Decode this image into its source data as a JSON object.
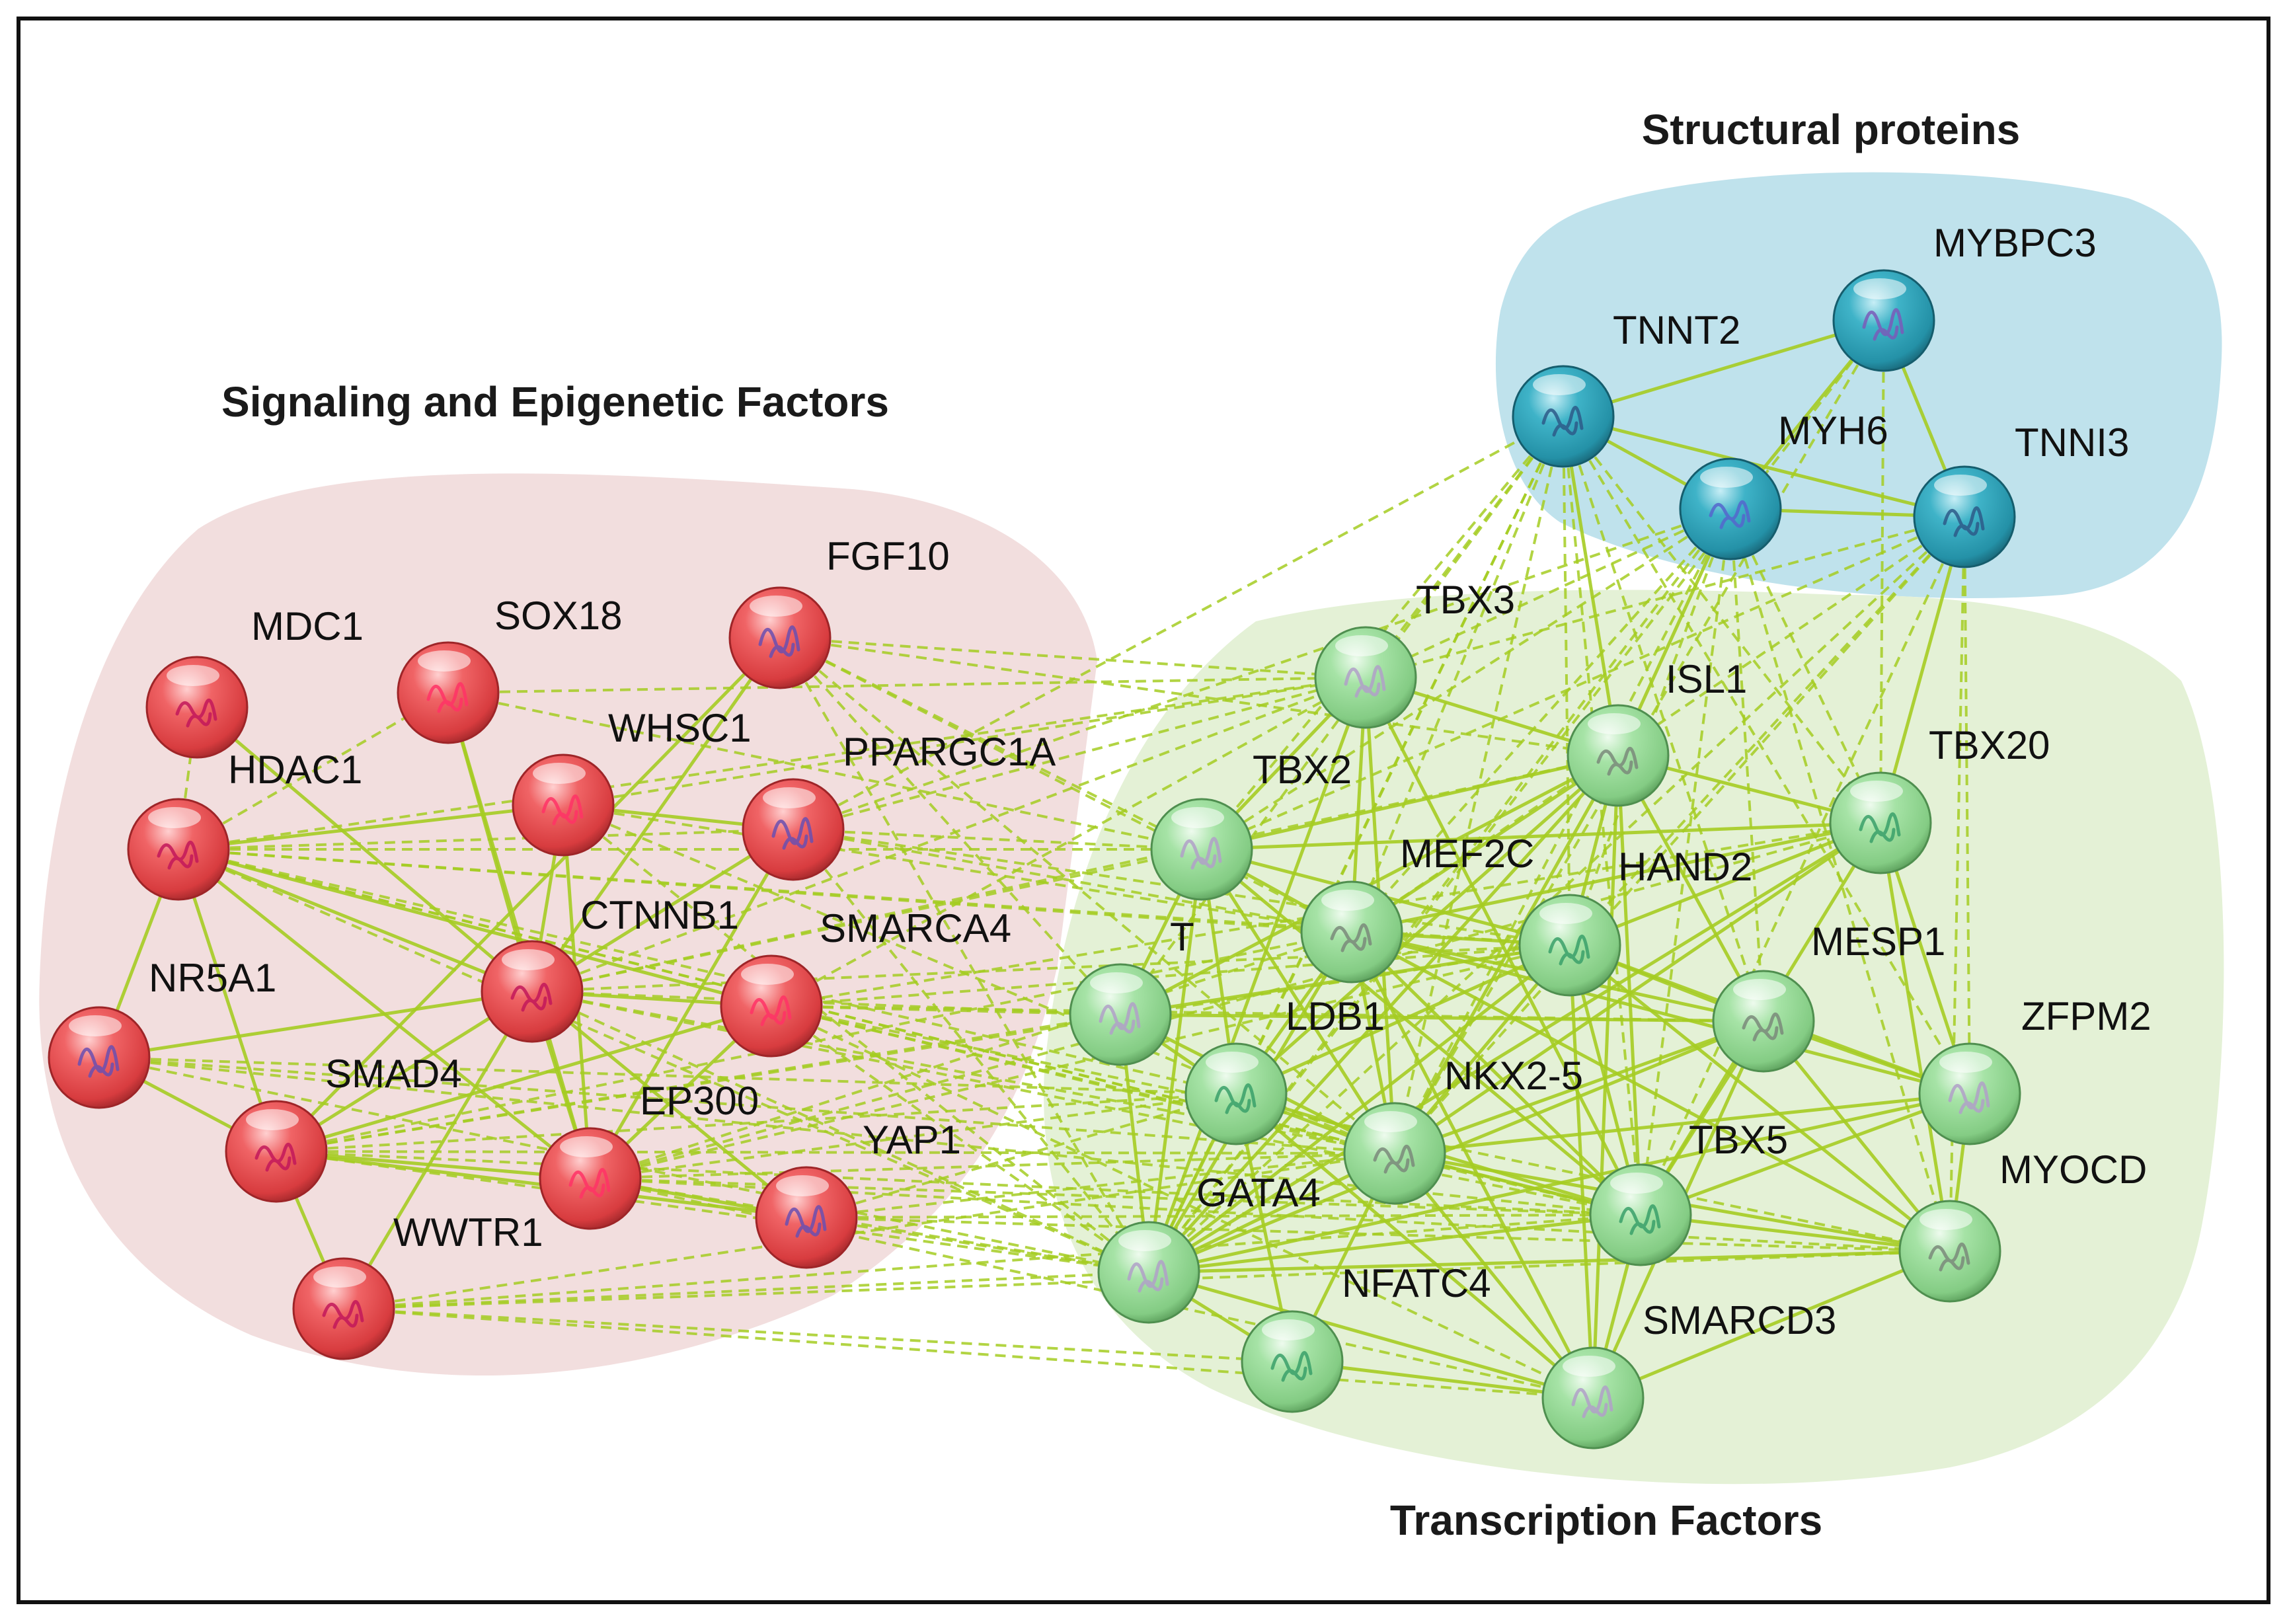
{
  "colors": {
    "signaling": "#e8474a",
    "structural": "#2a9db3",
    "transcription": "#8fd68f",
    "edge": "#a5cc22"
  },
  "groups": {
    "signaling": {
      "title": "Signaling and Epigenetic Factors",
      "fill": "#f2dede"
    },
    "structural": {
      "title": "Structural proteins",
      "fill": "#bfe2ec"
    },
    "transcription": {
      "title": "Transcription Factors",
      "fill": "#e4f1d6"
    }
  },
  "nodes": [
    {
      "id": "MDC1",
      "label": "MDC1",
      "group": "signaling"
    },
    {
      "id": "SOX18",
      "label": "SOX18",
      "group": "signaling"
    },
    {
      "id": "FGF10",
      "label": "FGF10",
      "group": "signaling"
    },
    {
      "id": "HDAC1",
      "label": "HDAC1",
      "group": "signaling"
    },
    {
      "id": "WHSC1",
      "label": "WHSC1",
      "group": "signaling"
    },
    {
      "id": "PPARGC1A",
      "label": "PPARGC1A",
      "group": "signaling"
    },
    {
      "id": "CTNNB1",
      "label": "CTNNB1",
      "group": "signaling"
    },
    {
      "id": "SMARCA4",
      "label": "SMARCA4",
      "group": "signaling"
    },
    {
      "id": "NR5A1",
      "label": "NR5A1",
      "group": "signaling"
    },
    {
      "id": "SMAD4",
      "label": "SMAD4",
      "group": "signaling"
    },
    {
      "id": "EP300",
      "label": "EP300",
      "group": "signaling"
    },
    {
      "id": "YAP1",
      "label": "YAP1",
      "group": "signaling"
    },
    {
      "id": "WWTR1",
      "label": "WWTR1",
      "group": "signaling"
    },
    {
      "id": "TNNT2",
      "label": "TNNT2",
      "group": "structural"
    },
    {
      "id": "MYBPC3",
      "label": "MYBPC3",
      "group": "structural"
    },
    {
      "id": "MYH6",
      "label": "MYH6",
      "group": "structural"
    },
    {
      "id": "TNNI3",
      "label": "TNNI3",
      "group": "structural"
    },
    {
      "id": "TBX3",
      "label": "TBX3",
      "group": "transcription"
    },
    {
      "id": "ISL1",
      "label": "ISL1",
      "group": "transcription"
    },
    {
      "id": "TBX20",
      "label": "TBX20",
      "group": "transcription"
    },
    {
      "id": "TBX2",
      "label": "TBX2",
      "group": "transcription"
    },
    {
      "id": "MEF2C",
      "label": "MEF2C",
      "group": "transcription"
    },
    {
      "id": "HAND2",
      "label": "HAND2",
      "group": "transcription"
    },
    {
      "id": "T",
      "label": "T",
      "group": "transcription"
    },
    {
      "id": "MESP1",
      "label": "MESP1",
      "group": "transcription"
    },
    {
      "id": "LDB1",
      "label": "LDB1",
      "group": "transcription"
    },
    {
      "id": "ZFPM2",
      "label": "ZFPM2",
      "group": "transcription"
    },
    {
      "id": "NKX2-5",
      "label": "NKX2-5",
      "group": "transcription"
    },
    {
      "id": "TBX5",
      "label": "TBX5",
      "group": "transcription"
    },
    {
      "id": "GATA4",
      "label": "GATA4",
      "group": "transcription"
    },
    {
      "id": "MYOCD",
      "label": "MYOCD",
      "group": "transcription"
    },
    {
      "id": "NFATC4",
      "label": "NFATC4",
      "group": "transcription"
    },
    {
      "id": "SMARCD3",
      "label": "SMARCD3",
      "group": "transcription"
    }
  ],
  "solid_edges": [
    [
      "HDAC1",
      "CTNNB1"
    ],
    [
      "HDAC1",
      "SMAD4"
    ],
    [
      "HDAC1",
      "SMARCA4"
    ],
    [
      "HDAC1",
      "EP300"
    ],
    [
      "HDAC1",
      "WHSC1"
    ],
    [
      "HDAC1",
      "NR5A1"
    ],
    [
      "MDC1",
      "CTNNB1"
    ],
    [
      "SOX18",
      "CTNNB1"
    ],
    [
      "SOX18",
      "EP300"
    ],
    [
      "FGF10",
      "CTNNB1"
    ],
    [
      "FGF10",
      "SMAD4"
    ],
    [
      "WHSC1",
      "CTNNB1"
    ],
    [
      "WHSC1",
      "EP300"
    ],
    [
      "WHSC1",
      "PPARGC1A"
    ],
    [
      "PPARGC1A",
      "EP300"
    ],
    [
      "PPARGC1A",
      "CTNNB1"
    ],
    [
      "CTNNB1",
      "SMARCA4"
    ],
    [
      "CTNNB1",
      "SMAD4"
    ],
    [
      "CTNNB1",
      "EP300"
    ],
    [
      "CTNNB1",
      "YAP1"
    ],
    [
      "CTNNB1",
      "WWTR1"
    ],
    [
      "CTNNB1",
      "NR5A1"
    ],
    [
      "SMARCA4",
      "EP300"
    ],
    [
      "SMARCA4",
      "SMAD4"
    ],
    [
      "SMAD4",
      "EP300"
    ],
    [
      "SMAD4",
      "WWTR1"
    ],
    [
      "SMAD4",
      "YAP1"
    ],
    [
      "EP300",
      "YAP1"
    ],
    [
      "NR5A1",
      "SMAD4"
    ],
    [
      "TNNT2",
      "MYBPC3"
    ],
    [
      "TNNT2",
      "MYH6"
    ],
    [
      "TNNT2",
      "TNNI3"
    ],
    [
      "MYBPC3",
      "MYH6"
    ],
    [
      "MYBPC3",
      "TNNI3"
    ],
    [
      "MYH6",
      "TNNI3"
    ],
    [
      "TBX3",
      "TBX2"
    ],
    [
      "TBX3",
      "ISL1"
    ],
    [
      "TBX3",
      "MEF2C"
    ],
    [
      "TBX3",
      "NKX2-5"
    ],
    [
      "TBX3",
      "TBX5"
    ],
    [
      "TBX3",
      "GATA4"
    ],
    [
      "ISL1",
      "TBX2"
    ],
    [
      "ISL1",
      "TBX20"
    ],
    [
      "ISL1",
      "MEF2C"
    ],
    [
      "ISL1",
      "HAND2"
    ],
    [
      "ISL1",
      "NKX2-5"
    ],
    [
      "ISL1",
      "GATA4"
    ],
    [
      "ISL1",
      "TBX5"
    ],
    [
      "ISL1",
      "MESP1"
    ],
    [
      "ISL1",
      "LDB1"
    ],
    [
      "ISL1",
      "SMARCD3"
    ],
    [
      "ISL1",
      "T"
    ],
    [
      "TBX20",
      "MEF2C"
    ],
    [
      "TBX20",
      "HAND2"
    ],
    [
      "TBX20",
      "NKX2-5"
    ],
    [
      "TBX20",
      "TBX5"
    ],
    [
      "TBX20",
      "GATA4"
    ],
    [
      "TBX20",
      "ZFPM2"
    ],
    [
      "TBX20",
      "MYOCD"
    ],
    [
      "TBX20",
      "TBX2"
    ],
    [
      "TBX2",
      "MEF2C"
    ],
    [
      "TBX2",
      "NKX2-5"
    ],
    [
      "TBX2",
      "TBX5"
    ],
    [
      "TBX2",
      "GATA4"
    ],
    [
      "TBX2",
      "HAND2"
    ],
    [
      "TBX2",
      "LDB1"
    ],
    [
      "TBX2",
      "T"
    ],
    [
      "MEF2C",
      "HAND2"
    ],
    [
      "MEF2C",
      "NKX2-5"
    ],
    [
      "MEF2C",
      "GATA4"
    ],
    [
      "MEF2C",
      "TBX5"
    ],
    [
      "MEF2C",
      "MYOCD"
    ],
    [
      "MEF2C",
      "MESP1"
    ],
    [
      "MEF2C",
      "LDB1"
    ],
    [
      "MEF2C",
      "SMARCD3"
    ],
    [
      "MEF2C",
      "ZFPM2"
    ],
    [
      "HAND2",
      "NKX2-5"
    ],
    [
      "HAND2",
      "GATA4"
    ],
    [
      "HAND2",
      "TBX5"
    ],
    [
      "HAND2",
      "MESP1"
    ],
    [
      "HAND2",
      "ZFPM2"
    ],
    [
      "HAND2",
      "MYOCD"
    ],
    [
      "HAND2",
      "SMARCD3"
    ],
    [
      "HAND2",
      "T"
    ],
    [
      "HAND2",
      "LDB1"
    ],
    [
      "T",
      "MESP1"
    ],
    [
      "T",
      "GATA4"
    ],
    [
      "T",
      "NKX2-5"
    ],
    [
      "T",
      "LDB1"
    ],
    [
      "MESP1",
      "NKX2-5"
    ],
    [
      "MESP1",
      "GATA4"
    ],
    [
      "MESP1",
      "TBX5"
    ],
    [
      "MESP1",
      "ZFPM2"
    ],
    [
      "MESP1",
      "MYOCD"
    ],
    [
      "MESP1",
      "SMARCD3"
    ],
    [
      "LDB1",
      "NKX2-5"
    ],
    [
      "LDB1",
      "GATA4"
    ],
    [
      "LDB1",
      "TBX5"
    ],
    [
      "LDB1",
      "SMARCD3"
    ],
    [
      "LDB1",
      "NFATC4"
    ],
    [
      "NKX2-5",
      "TBX5"
    ],
    [
      "NKX2-5",
      "GATA4"
    ],
    [
      "NKX2-5",
      "MYOCD"
    ],
    [
      "NKX2-5",
      "ZFPM2"
    ],
    [
      "NKX2-5",
      "SMARCD3"
    ],
    [
      "NKX2-5",
      "NFATC4"
    ],
    [
      "TBX5",
      "GATA4"
    ],
    [
      "TBX5",
      "MYOCD"
    ],
    [
      "TBX5",
      "SMARCD3"
    ],
    [
      "TBX5",
      "ZFPM2"
    ],
    [
      "GATA4",
      "ZFPM2"
    ],
    [
      "GATA4",
      "MYOCD"
    ],
    [
      "GATA4",
      "NFATC4"
    ],
    [
      "GATA4",
      "SMARCD3"
    ],
    [
      "MYOCD",
      "SMARCD3"
    ],
    [
      "NFATC4",
      "SMARCD3"
    ],
    [
      "ZFPM2",
      "MYOCD"
    ],
    [
      "TNNT2",
      "ISL1"
    ],
    [
      "MYH6",
      "ISL1"
    ],
    [
      "TNNI3",
      "TBX20"
    ]
  ],
  "dashed_edges": [
    [
      "FGF10",
      "TBX3"
    ],
    [
      "FGF10",
      "TBX2"
    ],
    [
      "FGF10",
      "ISL1"
    ],
    [
      "FGF10",
      "GATA4"
    ],
    [
      "FGF10",
      "NKX2-5"
    ],
    [
      "FGF10",
      "T"
    ],
    [
      "FGF10",
      "MEF2C"
    ],
    [
      "SOX18",
      "TBX2"
    ],
    [
      "SOX18",
      "TBX3"
    ],
    [
      "WHSC1",
      "TBX3"
    ],
    [
      "WHSC1",
      "GATA4"
    ],
    [
      "WHSC1",
      "NKX2-5"
    ],
    [
      "WHSC1",
      "MEF2C"
    ],
    [
      "HDAC1",
      "TBX3"
    ],
    [
      "HDAC1",
      "TBX2"
    ],
    [
      "HDAC1",
      "GATA4"
    ],
    [
      "HDAC1",
      "NKX2-5"
    ],
    [
      "HDAC1",
      "TBX5"
    ],
    [
      "HDAC1",
      "MEF2C"
    ],
    [
      "HDAC1",
      "HAND2"
    ],
    [
      "HDAC1",
      "LDB1"
    ],
    [
      "HDAC1",
      "PPARGC1A"
    ],
    [
      "HDAC1",
      "SOX18"
    ],
    [
      "HDAC1",
      "MDC1"
    ],
    [
      "PPARGC1A",
      "TBX3"
    ],
    [
      "PPARGC1A",
      "MEF2C"
    ],
    [
      "PPARGC1A",
      "GATA4"
    ],
    [
      "PPARGC1A",
      "TBX2"
    ],
    [
      "PPARGC1A",
      "MYH6"
    ],
    [
      "PPARGC1A",
      "TNNT2"
    ],
    [
      "PPARGC1A",
      "HAND2"
    ],
    [
      "CTNNB1",
      "TBX3"
    ],
    [
      "CTNNB1",
      "TBX2"
    ],
    [
      "CTNNB1",
      "T"
    ],
    [
      "CTNNB1",
      "ISL1"
    ],
    [
      "CTNNB1",
      "GATA4"
    ],
    [
      "CTNNB1",
      "TBX5"
    ],
    [
      "CTNNB1",
      "NKX2-5"
    ],
    [
      "CTNNB1",
      "HAND2"
    ],
    [
      "SMARCA4",
      "TBX5"
    ],
    [
      "SMARCA4",
      "GATA4"
    ],
    [
      "SMARCA4",
      "NKX2-5"
    ],
    [
      "SMARCA4",
      "T"
    ],
    [
      "SMARCA4",
      "TBX20"
    ],
    [
      "SMARCA4",
      "MESP1"
    ],
    [
      "SMARCA4",
      "SMARCD3"
    ],
    [
      "SMARCA4",
      "TBX3"
    ],
    [
      "SMARCA4",
      "HAND2"
    ],
    [
      "SMARCA4",
      "MYOCD"
    ],
    [
      "SMAD4",
      "GATA4"
    ],
    [
      "SMAD4",
      "NKX2-5"
    ],
    [
      "SMAD4",
      "TBX5"
    ],
    [
      "SMAD4",
      "T"
    ],
    [
      "SMAD4",
      "LDB1"
    ],
    [
      "SMAD4",
      "MEF2C"
    ],
    [
      "SMAD4",
      "HAND2"
    ],
    [
      "EP300",
      "GATA4"
    ],
    [
      "EP300",
      "NKX2-5"
    ],
    [
      "EP300",
      "TBX5"
    ],
    [
      "EP300",
      "MEF2C"
    ],
    [
      "EP300",
      "HAND2"
    ],
    [
      "EP300",
      "MYOCD"
    ],
    [
      "EP300",
      "SMARCD3"
    ],
    [
      "EP300",
      "LDB1"
    ],
    [
      "EP300",
      "TBX20"
    ],
    [
      "YAP1",
      "GATA4"
    ],
    [
      "YAP1",
      "TBX5"
    ],
    [
      "YAP1",
      "NKX2-5"
    ],
    [
      "YAP1",
      "LDB1"
    ],
    [
      "YAP1",
      "MYOCD"
    ],
    [
      "WWTR1",
      "GATA4"
    ],
    [
      "WWTR1",
      "TBX5"
    ],
    [
      "WWTR1",
      "NKX2-5"
    ],
    [
      "WWTR1",
      "NFATC4"
    ],
    [
      "WWTR1",
      "SMARCD3"
    ],
    [
      "WWTR1",
      "MYOCD"
    ],
    [
      "NR5A1",
      "GATA4"
    ],
    [
      "NR5A1",
      "TBX5"
    ],
    [
      "NR5A1",
      "NKX2-5"
    ],
    [
      "NR5A1",
      "LDB1"
    ],
    [
      "TNNT2",
      "TBX3"
    ],
    [
      "TNNT2",
      "TBX2"
    ],
    [
      "TNNT2",
      "MEF2C"
    ],
    [
      "TNNT2",
      "GATA4"
    ],
    [
      "TNNT2",
      "NKX2-5"
    ],
    [
      "TNNT2",
      "TBX5"
    ],
    [
      "TNNT2",
      "HAND2"
    ],
    [
      "TNNT2",
      "MESP1"
    ],
    [
      "TNNT2",
      "TBX20"
    ],
    [
      "TNNT2",
      "LDB1"
    ],
    [
      "TNNT2",
      "ZFPM2"
    ],
    [
      "TNNT2",
      "T"
    ],
    [
      "MYH6",
      "TBX3"
    ],
    [
      "MYH6",
      "GATA4"
    ],
    [
      "MYH6",
      "NKX2-5"
    ],
    [
      "MYH6",
      "TBX5"
    ],
    [
      "MYH6",
      "MEF2C"
    ],
    [
      "MYH6",
      "HAND2"
    ],
    [
      "MYH6",
      "MYOCD"
    ],
    [
      "MYH6",
      "TBX20"
    ],
    [
      "MYH6",
      "TBX2"
    ],
    [
      "MYH6",
      "MESP1"
    ],
    [
      "TNNI3",
      "GATA4"
    ],
    [
      "TNNI3",
      "NKX2-5"
    ],
    [
      "TNNI3",
      "TBX5"
    ],
    [
      "TNNI3",
      "MEF2C"
    ],
    [
      "TNNI3",
      "HAND2"
    ],
    [
      "TNNI3",
      "MYOCD"
    ],
    [
      "TNNI3",
      "TBX2"
    ],
    [
      "TNNI3",
      "TBX3"
    ],
    [
      "TNNI3",
      "ZFPM2"
    ],
    [
      "MYBPC3",
      "TBX20"
    ],
    [
      "MYBPC3",
      "NKX2-5"
    ],
    [
      "MYBPC3",
      "GATA4"
    ]
  ]
}
